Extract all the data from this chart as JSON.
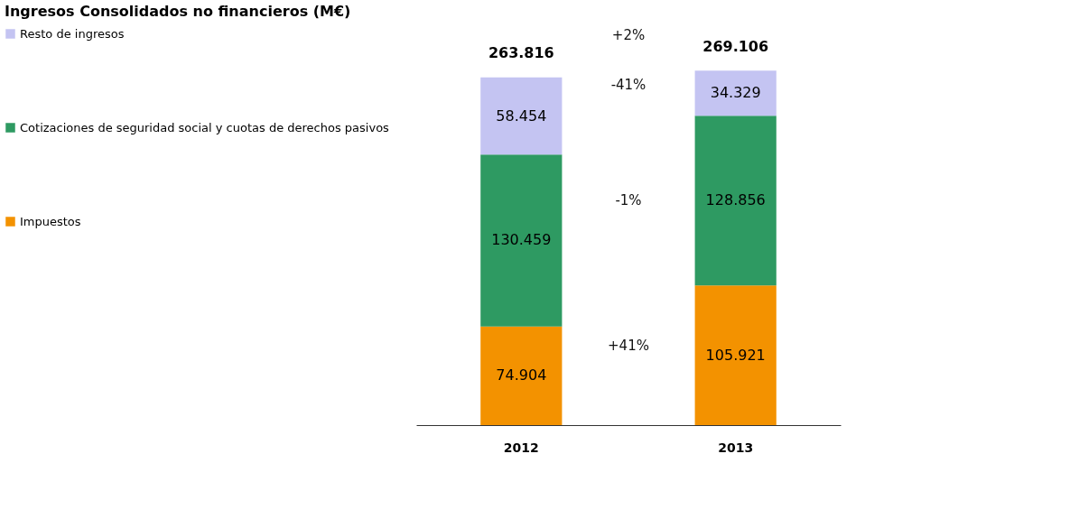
{
  "chart_data": {
    "type": "bar",
    "stacked": true,
    "title": "Ingresos Consolidados no financieros (M€)",
    "categories": [
      "2012",
      "2013"
    ],
    "series": [
      {
        "name": "Impuestos",
        "color": "#f39200",
        "values": [
          74904,
          105921
        ],
        "value_labels": [
          "74.904",
          "105.921"
        ]
      },
      {
        "name": "Cotizaciones de seguridad social y cuotas de derechos pasivos",
        "color": "#2e9a62",
        "values": [
          130459,
          128856
        ],
        "value_labels": [
          "130.459",
          "128.856"
        ]
      },
      {
        "name": "Resto de ingresos",
        "color": "#c4c4f2",
        "values": [
          58454,
          34329
        ],
        "value_labels": [
          "58.454",
          "34.329"
        ]
      }
    ],
    "totals": [
      "263.816",
      "269.106"
    ],
    "annotations": [
      "+2%",
      "-41%",
      "-1%",
      "+41%"
    ],
    "legend": "left"
  }
}
